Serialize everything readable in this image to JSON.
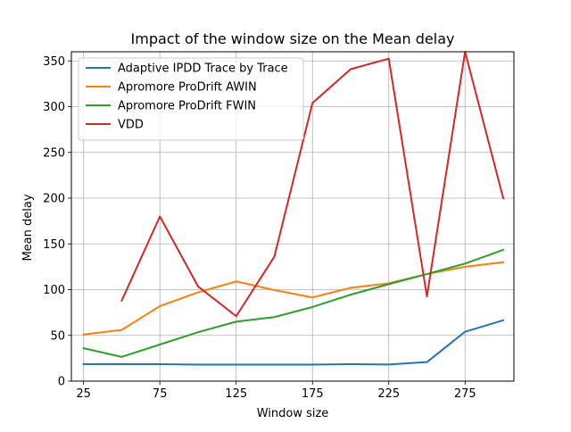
{
  "chart_data": {
    "type": "line",
    "title": "Impact of the window size on the Mean delay",
    "xlabel": "Window size",
    "ylabel": "Mean delay",
    "xlim": [
      17,
      307
    ],
    "ylim": [
      0,
      360
    ],
    "xticks": [
      25,
      75,
      125,
      175,
      225,
      275
    ],
    "yticks": [
      0,
      50,
      100,
      150,
      200,
      250,
      300,
      350
    ],
    "grid": true,
    "legend_position": "top-left",
    "series": [
      {
        "name": "Adaptive IPDD Trace by Trace",
        "color": "#1f77b4",
        "x": [
          25,
          50,
          75,
          100,
          125,
          150,
          175,
          200,
          225,
          250,
          275,
          300
        ],
        "values": [
          18.5,
          18.5,
          18.5,
          18,
          18,
          18,
          18,
          18.5,
          18.2,
          20.8,
          54,
          66.5
        ]
      },
      {
        "name": "Apromore ProDrift AWIN",
        "color": "#ff7f0e",
        "x": [
          25,
          50,
          75,
          100,
          125,
          150,
          175,
          200,
          225,
          250,
          275,
          300
        ],
        "values": [
          51,
          56,
          82,
          97,
          109,
          99.5,
          91.5,
          102,
          107,
          117,
          125,
          130
        ]
      },
      {
        "name": "Apromore ProDrift FWIN",
        "color": "#2ca02c",
        "x": [
          25,
          50,
          75,
          100,
          125,
          150,
          175,
          200,
          225,
          250,
          275,
          300
        ],
        "values": [
          36,
          26.5,
          40,
          53.5,
          65,
          70,
          81,
          94.5,
          106,
          117,
          128.5,
          143.5
        ]
      },
      {
        "name": "VDD",
        "color": "#d62728",
        "x": [
          50,
          75,
          100,
          125,
          150,
          175,
          200,
          225,
          250,
          275,
          300
        ],
        "values": [
          88,
          180,
          103.5,
          71,
          136,
          304,
          341,
          352.5,
          92.5,
          360,
          200
        ]
      }
    ]
  }
}
